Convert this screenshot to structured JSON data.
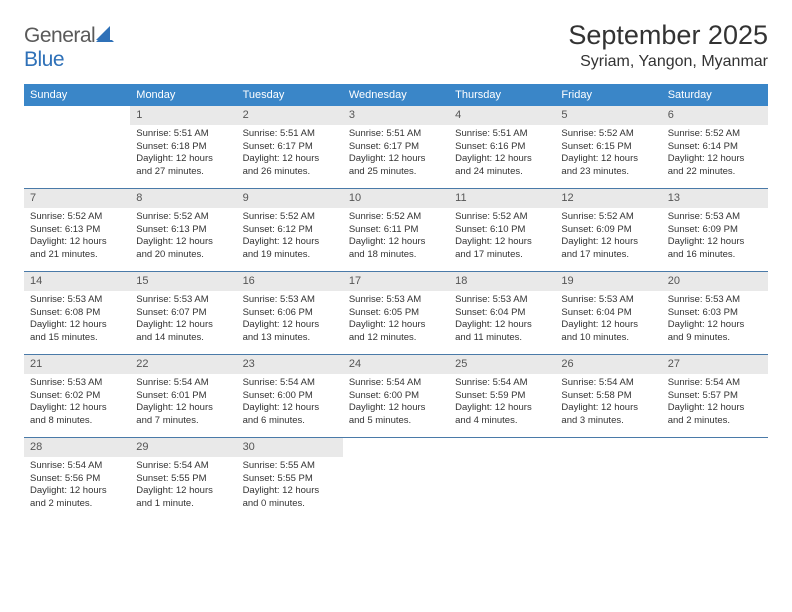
{
  "logo": {
    "text1": "General",
    "text2": "Blue"
  },
  "title": "September 2025",
  "location": "Syriam, Yangon, Myanmar",
  "colors": {
    "header_bg": "#3a86c8",
    "header_text": "#ffffff",
    "daynum_bg": "#e9e9e9",
    "daynum_text": "#555555",
    "week_divider": "#4a7aa8",
    "body_text": "#333333",
    "logo_gray": "#5a5a5a",
    "logo_blue": "#2f71b8"
  },
  "day_names": [
    "Sunday",
    "Monday",
    "Tuesday",
    "Wednesday",
    "Thursday",
    "Friday",
    "Saturday"
  ],
  "weeks": [
    [
      {
        "day": "",
        "sunrise": "",
        "sunset": "",
        "daylight1": "",
        "daylight2": "",
        "empty": true
      },
      {
        "day": "1",
        "sunrise": "Sunrise: 5:51 AM",
        "sunset": "Sunset: 6:18 PM",
        "daylight1": "Daylight: 12 hours",
        "daylight2": "and 27 minutes."
      },
      {
        "day": "2",
        "sunrise": "Sunrise: 5:51 AM",
        "sunset": "Sunset: 6:17 PM",
        "daylight1": "Daylight: 12 hours",
        "daylight2": "and 26 minutes."
      },
      {
        "day": "3",
        "sunrise": "Sunrise: 5:51 AM",
        "sunset": "Sunset: 6:17 PM",
        "daylight1": "Daylight: 12 hours",
        "daylight2": "and 25 minutes."
      },
      {
        "day": "4",
        "sunrise": "Sunrise: 5:51 AM",
        "sunset": "Sunset: 6:16 PM",
        "daylight1": "Daylight: 12 hours",
        "daylight2": "and 24 minutes."
      },
      {
        "day": "5",
        "sunrise": "Sunrise: 5:52 AM",
        "sunset": "Sunset: 6:15 PM",
        "daylight1": "Daylight: 12 hours",
        "daylight2": "and 23 minutes."
      },
      {
        "day": "6",
        "sunrise": "Sunrise: 5:52 AM",
        "sunset": "Sunset: 6:14 PM",
        "daylight1": "Daylight: 12 hours",
        "daylight2": "and 22 minutes."
      }
    ],
    [
      {
        "day": "7",
        "sunrise": "Sunrise: 5:52 AM",
        "sunset": "Sunset: 6:13 PM",
        "daylight1": "Daylight: 12 hours",
        "daylight2": "and 21 minutes."
      },
      {
        "day": "8",
        "sunrise": "Sunrise: 5:52 AM",
        "sunset": "Sunset: 6:13 PM",
        "daylight1": "Daylight: 12 hours",
        "daylight2": "and 20 minutes."
      },
      {
        "day": "9",
        "sunrise": "Sunrise: 5:52 AM",
        "sunset": "Sunset: 6:12 PM",
        "daylight1": "Daylight: 12 hours",
        "daylight2": "and 19 minutes."
      },
      {
        "day": "10",
        "sunrise": "Sunrise: 5:52 AM",
        "sunset": "Sunset: 6:11 PM",
        "daylight1": "Daylight: 12 hours",
        "daylight2": "and 18 minutes."
      },
      {
        "day": "11",
        "sunrise": "Sunrise: 5:52 AM",
        "sunset": "Sunset: 6:10 PM",
        "daylight1": "Daylight: 12 hours",
        "daylight2": "and 17 minutes."
      },
      {
        "day": "12",
        "sunrise": "Sunrise: 5:52 AM",
        "sunset": "Sunset: 6:09 PM",
        "daylight1": "Daylight: 12 hours",
        "daylight2": "and 17 minutes."
      },
      {
        "day": "13",
        "sunrise": "Sunrise: 5:53 AM",
        "sunset": "Sunset: 6:09 PM",
        "daylight1": "Daylight: 12 hours",
        "daylight2": "and 16 minutes."
      }
    ],
    [
      {
        "day": "14",
        "sunrise": "Sunrise: 5:53 AM",
        "sunset": "Sunset: 6:08 PM",
        "daylight1": "Daylight: 12 hours",
        "daylight2": "and 15 minutes."
      },
      {
        "day": "15",
        "sunrise": "Sunrise: 5:53 AM",
        "sunset": "Sunset: 6:07 PM",
        "daylight1": "Daylight: 12 hours",
        "daylight2": "and 14 minutes."
      },
      {
        "day": "16",
        "sunrise": "Sunrise: 5:53 AM",
        "sunset": "Sunset: 6:06 PM",
        "daylight1": "Daylight: 12 hours",
        "daylight2": "and 13 minutes."
      },
      {
        "day": "17",
        "sunrise": "Sunrise: 5:53 AM",
        "sunset": "Sunset: 6:05 PM",
        "daylight1": "Daylight: 12 hours",
        "daylight2": "and 12 minutes."
      },
      {
        "day": "18",
        "sunrise": "Sunrise: 5:53 AM",
        "sunset": "Sunset: 6:04 PM",
        "daylight1": "Daylight: 12 hours",
        "daylight2": "and 11 minutes."
      },
      {
        "day": "19",
        "sunrise": "Sunrise: 5:53 AM",
        "sunset": "Sunset: 6:04 PM",
        "daylight1": "Daylight: 12 hours",
        "daylight2": "and 10 minutes."
      },
      {
        "day": "20",
        "sunrise": "Sunrise: 5:53 AM",
        "sunset": "Sunset: 6:03 PM",
        "daylight1": "Daylight: 12 hours",
        "daylight2": "and 9 minutes."
      }
    ],
    [
      {
        "day": "21",
        "sunrise": "Sunrise: 5:53 AM",
        "sunset": "Sunset: 6:02 PM",
        "daylight1": "Daylight: 12 hours",
        "daylight2": "and 8 minutes."
      },
      {
        "day": "22",
        "sunrise": "Sunrise: 5:54 AM",
        "sunset": "Sunset: 6:01 PM",
        "daylight1": "Daylight: 12 hours",
        "daylight2": "and 7 minutes."
      },
      {
        "day": "23",
        "sunrise": "Sunrise: 5:54 AM",
        "sunset": "Sunset: 6:00 PM",
        "daylight1": "Daylight: 12 hours",
        "daylight2": "and 6 minutes."
      },
      {
        "day": "24",
        "sunrise": "Sunrise: 5:54 AM",
        "sunset": "Sunset: 6:00 PM",
        "daylight1": "Daylight: 12 hours",
        "daylight2": "and 5 minutes."
      },
      {
        "day": "25",
        "sunrise": "Sunrise: 5:54 AM",
        "sunset": "Sunset: 5:59 PM",
        "daylight1": "Daylight: 12 hours",
        "daylight2": "and 4 minutes."
      },
      {
        "day": "26",
        "sunrise": "Sunrise: 5:54 AM",
        "sunset": "Sunset: 5:58 PM",
        "daylight1": "Daylight: 12 hours",
        "daylight2": "and 3 minutes."
      },
      {
        "day": "27",
        "sunrise": "Sunrise: 5:54 AM",
        "sunset": "Sunset: 5:57 PM",
        "daylight1": "Daylight: 12 hours",
        "daylight2": "and 2 minutes."
      }
    ],
    [
      {
        "day": "28",
        "sunrise": "Sunrise: 5:54 AM",
        "sunset": "Sunset: 5:56 PM",
        "daylight1": "Daylight: 12 hours",
        "daylight2": "and 2 minutes."
      },
      {
        "day": "29",
        "sunrise": "Sunrise: 5:54 AM",
        "sunset": "Sunset: 5:55 PM",
        "daylight1": "Daylight: 12 hours",
        "daylight2": "and 1 minute."
      },
      {
        "day": "30",
        "sunrise": "Sunrise: 5:55 AM",
        "sunset": "Sunset: 5:55 PM",
        "daylight1": "Daylight: 12 hours",
        "daylight2": "and 0 minutes."
      },
      {
        "day": "",
        "sunrise": "",
        "sunset": "",
        "daylight1": "",
        "daylight2": "",
        "empty": true
      },
      {
        "day": "",
        "sunrise": "",
        "sunset": "",
        "daylight1": "",
        "daylight2": "",
        "empty": true
      },
      {
        "day": "",
        "sunrise": "",
        "sunset": "",
        "daylight1": "",
        "daylight2": "",
        "empty": true
      },
      {
        "day": "",
        "sunrise": "",
        "sunset": "",
        "daylight1": "",
        "daylight2": "",
        "empty": true
      }
    ]
  ]
}
